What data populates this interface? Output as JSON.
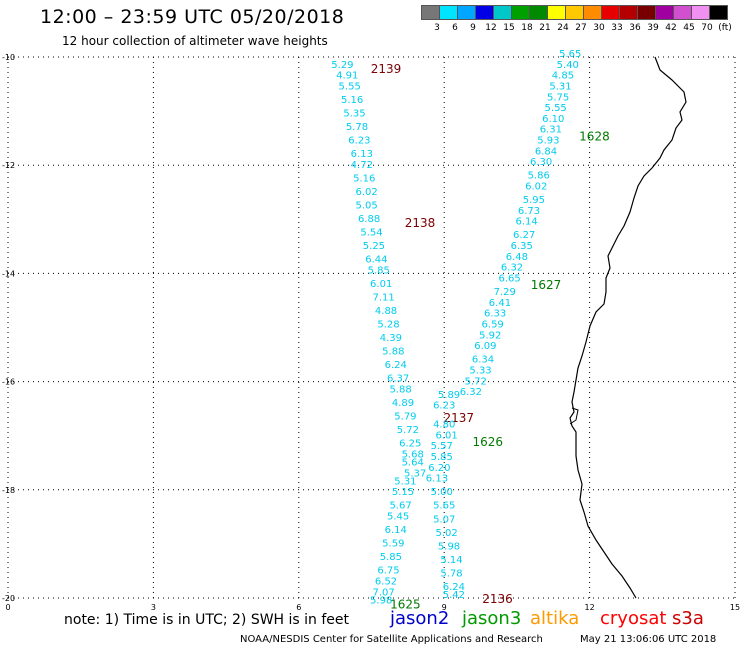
{
  "header": {
    "title": "12:00 – 23:59 UTC 05/20/2018",
    "subtitle": "12 hour collection of altimeter wave heights"
  },
  "legend": {
    "colors": [
      "#777777",
      "#00e5ff",
      "#00a6ff",
      "#0000e6",
      "#00c8c8",
      "#00a000",
      "#008a00",
      "#ffff00",
      "#ffc800",
      "#ff8c00",
      "#e60000",
      "#b40000",
      "#780000",
      "#a000a0",
      "#d050d0",
      "#f090f0",
      "#000000"
    ],
    "labels": [
      "3",
      "6",
      "9",
      "12",
      "15",
      "18",
      "21",
      "24",
      "27",
      "30",
      "33",
      "36",
      "39",
      "42",
      "45",
      "70",
      "(ft)"
    ]
  },
  "map": {
    "lat_ticks": [
      "-10",
      "-12",
      "-14",
      "-16",
      "-18",
      "-20"
    ],
    "lon_ticks": [
      "0",
      "3",
      "6",
      "9",
      "12",
      "15"
    ],
    "coastline_color": "#000000",
    "grid_color": "#000000",
    "wave_text_color": "#00ccee"
  },
  "tracks": [
    {
      "id": "2139",
      "color": "#7a0000",
      "label_lat": -10.2,
      "label_lon": 7.8,
      "points": [
        {
          "lat": -10.2,
          "lon": 6.9,
          "v": "5.29"
        },
        {
          "lat": -10.4,
          "lon": 7.0,
          "v": "4.91"
        },
        {
          "lat": -10.6,
          "lon": 7.05,
          "v": "5.55"
        },
        {
          "lat": -10.85,
          "lon": 7.1,
          "v": "5.16"
        },
        {
          "lat": -11.1,
          "lon": 7.15,
          "v": "5.35"
        },
        {
          "lat": -11.35,
          "lon": 7.2,
          "v": "5.78"
        },
        {
          "lat": -11.6,
          "lon": 7.25,
          "v": "6.23"
        },
        {
          "lat": -11.85,
          "lon": 7.3,
          "v": "6.13"
        },
        {
          "lat": -12.05,
          "lon": 7.3,
          "v": "4.72"
        },
        {
          "lat": -12.3,
          "lon": 7.35,
          "v": "5.16"
        },
        {
          "lat": -12.55,
          "lon": 7.4,
          "v": "6.02"
        },
        {
          "lat": -12.8,
          "lon": 7.4,
          "v": "5.05"
        }
      ]
    },
    {
      "id": "2138",
      "color": "#7a0000",
      "label_lat": -13.05,
      "label_lon": 8.5,
      "points": [
        {
          "lat": -13.05,
          "lon": 7.45,
          "v": "6.88"
        },
        {
          "lat": -13.3,
          "lon": 7.5,
          "v": "5.54"
        },
        {
          "lat": -13.55,
          "lon": 7.55,
          "v": "5.25"
        },
        {
          "lat": -13.8,
          "lon": 7.6,
          "v": "6.44"
        },
        {
          "lat": -14.0,
          "lon": 7.65,
          "v": "5.85"
        },
        {
          "lat": -14.25,
          "lon": 7.7,
          "v": "6.01"
        },
        {
          "lat": -14.5,
          "lon": 7.75,
          "v": "7.11"
        },
        {
          "lat": -14.75,
          "lon": 7.8,
          "v": "4.88"
        },
        {
          "lat": -15.0,
          "lon": 7.85,
          "v": "5.28"
        },
        {
          "lat": -15.25,
          "lon": 7.9,
          "v": "4.39"
        },
        {
          "lat": -15.5,
          "lon": 7.95,
          "v": "5.88"
        },
        {
          "lat": -15.75,
          "lon": 8.0,
          "v": "6.24"
        },
        {
          "lat": -16.0,
          "lon": 8.05,
          "v": "6.37"
        },
        {
          "lat": -16.2,
          "lon": 8.1,
          "v": "5.88"
        },
        {
          "lat": -16.45,
          "lon": 8.15,
          "v": "4.89"
        },
        {
          "lat": -16.7,
          "lon": 8.2,
          "v": "5.79"
        },
        {
          "lat": -16.95,
          "lon": 8.25,
          "v": "5.72"
        },
        {
          "lat": -17.2,
          "lon": 8.3,
          "v": "6.25"
        },
        {
          "lat": -17.4,
          "lon": 8.35,
          "v": "5.68"
        },
        {
          "lat": -17.55,
          "lon": 8.35,
          "v": "5.64"
        },
        {
          "lat": -17.75,
          "lon": 8.4,
          "v": "5.37"
        }
      ]
    },
    {
      "id": "2137",
      "color": "#7a0000",
      "label_lat": -16.65,
      "label_lon": 9.3,
      "points": [
        {
          "lat": -17.9,
          "lon": 8.2,
          "v": "5.31"
        },
        {
          "lat": -18.1,
          "lon": 8.15,
          "v": "5.15"
        },
        {
          "lat": -18.35,
          "lon": 8.1,
          "v": "5.67"
        },
        {
          "lat": -18.55,
          "lon": 8.05,
          "v": "5.45"
        },
        {
          "lat": -18.8,
          "lon": 8.0,
          "v": "6.14"
        },
        {
          "lat": -19.05,
          "lon": 7.95,
          "v": "5.59"
        },
        {
          "lat": -19.3,
          "lon": 7.9,
          "v": "5.85"
        },
        {
          "lat": -19.55,
          "lon": 7.85,
          "v": "6.75"
        },
        {
          "lat": -19.75,
          "lon": 7.8,
          "v": "6.52"
        },
        {
          "lat": -19.95,
          "lon": 7.75,
          "v": "7.07"
        },
        {
          "lat": -20.1,
          "lon": 7.7,
          "v": "5.98"
        }
      ]
    },
    {
      "id": "2136",
      "color": "#7a0000",
      "label_lat": -20.0,
      "label_lon": 10.1,
      "points": [
        {
          "lat": -16.5,
          "lon": 9.0,
          "v": "6.23"
        },
        {
          "lat": -16.3,
          "lon": 9.1,
          "v": "5.89"
        },
        {
          "lat": -16.85,
          "lon": 9.0,
          "v": "4.80"
        },
        {
          "lat": -17.05,
          "lon": 9.05,
          "v": "6.01"
        },
        {
          "lat": -17.25,
          "lon": 8.95,
          "v": "5.57"
        },
        {
          "lat": -17.45,
          "lon": 8.95,
          "v": "5.85"
        },
        {
          "lat": -17.65,
          "lon": 8.9,
          "v": "6.20"
        },
        {
          "lat": -17.85,
          "lon": 8.85,
          "v": "6.13"
        },
        {
          "lat": -18.1,
          "lon": 8.95,
          "v": "5.00"
        },
        {
          "lat": -18.35,
          "lon": 9.0,
          "v": "5.65"
        },
        {
          "lat": -18.6,
          "lon": 9.0,
          "v": "5.07"
        },
        {
          "lat": -18.85,
          "lon": 9.05,
          "v": "5.02"
        },
        {
          "lat": -19.1,
          "lon": 9.1,
          "v": "5.98"
        },
        {
          "lat": -19.35,
          "lon": 9.15,
          "v": "5.14"
        },
        {
          "lat": -19.6,
          "lon": 9.15,
          "v": "5.78"
        },
        {
          "lat": -19.85,
          "lon": 9.2,
          "v": "6.24"
        },
        {
          "lat": -20.0,
          "lon": 9.2,
          "v": "5.42"
        }
      ]
    },
    {
      "id": "1628",
      "color": "#007a00",
      "label_lat": -11.45,
      "label_lon": 12.1,
      "points": [
        {
          "lat": -10.0,
          "lon": 11.6,
          "v": "5.65"
        },
        {
          "lat": -10.2,
          "lon": 11.55,
          "v": "5.40"
        },
        {
          "lat": -10.4,
          "lon": 11.45,
          "v": "4.85"
        },
        {
          "lat": -10.6,
          "lon": 11.4,
          "v": "5.31"
        },
        {
          "lat": -10.8,
          "lon": 11.35,
          "v": "5.75"
        },
        {
          "lat": -11.0,
          "lon": 11.3,
          "v": "5.55"
        },
        {
          "lat": -11.2,
          "lon": 11.25,
          "v": "6.10"
        },
        {
          "lat": -11.4,
          "lon": 11.2,
          "v": "6.31"
        },
        {
          "lat": -11.6,
          "lon": 11.15,
          "v": "5.93"
        },
        {
          "lat": -11.8,
          "lon": 11.1,
          "v": "6.84"
        },
        {
          "lat": -12.0,
          "lon": 11.0,
          "v": "6.30"
        },
        {
          "lat": -12.25,
          "lon": 10.95,
          "v": "5.86"
        },
        {
          "lat": -12.45,
          "lon": 10.9,
          "v": "6.02"
        },
        {
          "lat": -12.7,
          "lon": 10.85,
          "v": "5.95"
        },
        {
          "lat": -12.9,
          "lon": 10.75,
          "v": "6.73"
        },
        {
          "lat": -13.1,
          "lon": 10.7,
          "v": "6.14"
        },
        {
          "lat": -13.35,
          "lon": 10.65,
          "v": "6.27"
        },
        {
          "lat": -13.55,
          "lon": 10.6,
          "v": "6.35"
        },
        {
          "lat": -13.75,
          "lon": 10.5,
          "v": "6.48"
        },
        {
          "lat": -13.95,
          "lon": 10.4,
          "v": "6.32"
        },
        {
          "lat": -14.15,
          "lon": 10.35,
          "v": "6.65"
        }
      ]
    },
    {
      "id": "1627",
      "color": "#007a00",
      "label_lat": -14.2,
      "label_lon": 11.1,
      "points": [
        {
          "lat": -14.4,
          "lon": 10.25,
          "v": "7.29"
        },
        {
          "lat": -14.6,
          "lon": 10.15,
          "v": "6.41"
        },
        {
          "lat": -14.8,
          "lon": 10.05,
          "v": "6.33"
        },
        {
          "lat": -15.0,
          "lon": 10.0,
          "v": "6.59"
        },
        {
          "lat": -15.2,
          "lon": 9.95,
          "v": "5.92"
        },
        {
          "lat": -15.4,
          "lon": 9.85,
          "v": "6.09"
        },
        {
          "lat": -15.65,
          "lon": 9.8,
          "v": "6.34"
        },
        {
          "lat": -15.85,
          "lon": 9.75,
          "v": "5.33"
        },
        {
          "lat": -16.05,
          "lon": 9.65,
          "v": "5.72"
        },
        {
          "lat": -16.25,
          "lon": 9.55,
          "v": "6.32"
        }
      ]
    },
    {
      "id": "1626",
      "color": "#007a00",
      "label_lat": -17.1,
      "label_lon": 9.9,
      "points": []
    },
    {
      "id": "1625",
      "color": "#007a00",
      "label_lat": -20.1,
      "label_lon": 8.2,
      "points": []
    }
  ],
  "footer": {
    "note": "note:  1) Time is in UTC;  2) SWH is in feet",
    "satellites": [
      {
        "name": "jason2",
        "color": "#0000cc"
      },
      {
        "name": "jason3",
        "color": "#009900"
      },
      {
        "name": "altika",
        "color": "#ff9900"
      },
      {
        "name": "cryosat",
        "color": "#ff0000"
      },
      {
        "name": "s3a",
        "color": "#cc0000"
      }
    ],
    "credit": "NOAA/NESDIS Center for Satellite Applications and Research",
    "timestamp": "May 21 13:06:06 UTC 2018"
  }
}
